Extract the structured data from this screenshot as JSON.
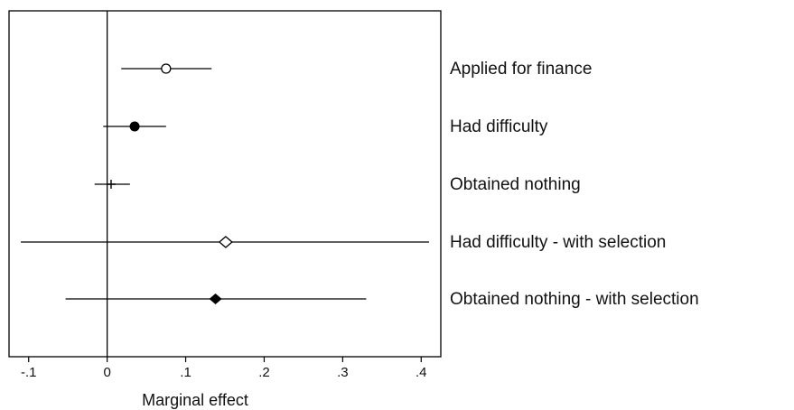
{
  "chart_data": {
    "type": "scatter",
    "subtype": "coefficient-plot-with-confidence-intervals",
    "title": "",
    "xlabel": "Marginal effect",
    "ylabel": "",
    "xlim": [
      -0.125,
      0.425
    ],
    "x_ticks": [
      -0.1,
      0,
      0.1,
      0.2,
      0.3,
      0.4
    ],
    "x_tick_labels": [
      "-.1",
      "0",
      ".1",
      ".2",
      ".3",
      ".4"
    ],
    "reference_line": 0,
    "grid": false,
    "legend": "none (series labels at right of plot)",
    "series": [
      {
        "name": "Applied for finance",
        "estimate": 0.075,
        "ci_low": 0.018,
        "ci_high": 0.133,
        "marker": "hollow-circle"
      },
      {
        "name": "Had difficulty",
        "estimate": 0.035,
        "ci_low": -0.005,
        "ci_high": 0.075,
        "marker": "filled-circle"
      },
      {
        "name": "Obtained nothing",
        "estimate": 0.005,
        "ci_low": -0.016,
        "ci_high": 0.029,
        "marker": "plus"
      },
      {
        "name": "Had difficulty - with selection",
        "estimate": 0.151,
        "ci_low": -0.11,
        "ci_high": 0.41,
        "marker": "hollow-diamond"
      },
      {
        "name": "Obtained nothing - with selection",
        "estimate": 0.138,
        "ci_low": -0.053,
        "ci_high": 0.33,
        "marker": "filled-diamond"
      }
    ],
    "colors": {
      "marks": "#000000",
      "background": "#ffffff"
    }
  }
}
